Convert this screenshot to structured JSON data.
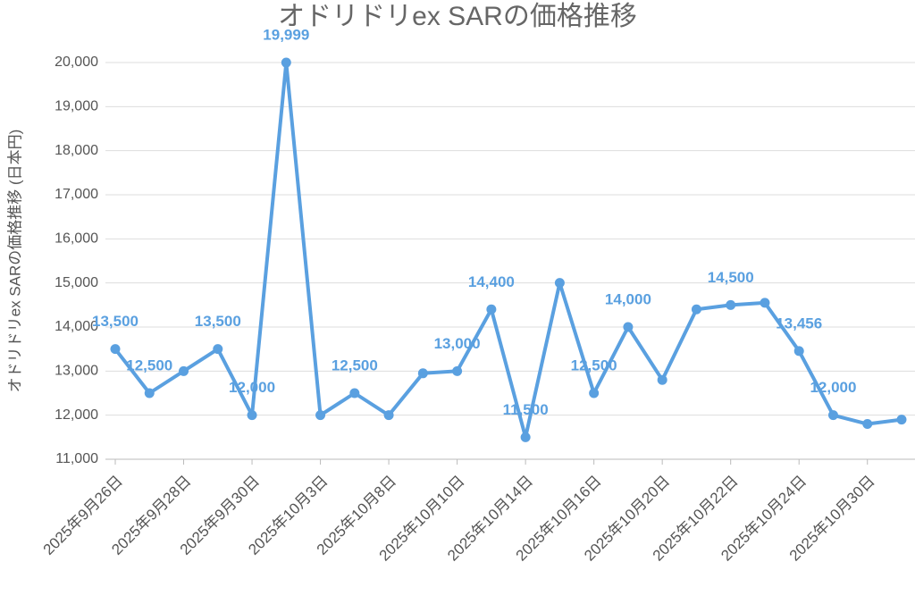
{
  "chart_data": {
    "type": "line",
    "title": "オドリドリex SARの価格推移",
    "y_label": "オドリドリex SARの価格推移 (日本円)",
    "categories": [
      "2025年9月26日",
      null,
      "2025年9月28日",
      null,
      "2025年9月30日",
      null,
      "2025年10月3日",
      null,
      "2025年10月8日",
      null,
      "2025年10月10日",
      null,
      "2025年10月14日",
      null,
      "2025年10月16日",
      null,
      "2025年10月20日",
      null,
      "2025年10月22日",
      null,
      "2025年10月24日",
      null,
      "2025年10月30日",
      null
    ],
    "series": [
      {
        "name": "価格",
        "color": "#5aa0e0",
        "values": [
          13500,
          12500,
          13000,
          13500,
          12000,
          19999,
          12000,
          12500,
          12000,
          12950,
          13000,
          14400,
          11500,
          15000,
          12500,
          14000,
          12800,
          14400,
          14500,
          14550,
          13456,
          12000,
          11800,
          11900
        ],
        "value_labels": [
          "13,500",
          "12,500",
          null,
          "13,500",
          "12,000",
          "19,999",
          null,
          "12,500",
          null,
          null,
          "13,000",
          "14,400",
          "11,500",
          null,
          "12,500",
          "14,000",
          null,
          null,
          "14,500",
          null,
          "13,456",
          "12,000",
          null,
          null
        ]
      }
    ],
    "ylim": [
      11000,
      20000
    ],
    "yticks": [
      {
        "value": 11000,
        "label": "11,000"
      },
      {
        "value": 12000,
        "label": "12,000"
      },
      {
        "value": 13000,
        "label": "13,000"
      },
      {
        "value": 14000,
        "label": "14,000"
      },
      {
        "value": 15000,
        "label": "15,000"
      },
      {
        "value": 16000,
        "label": "16,000"
      },
      {
        "value": 17000,
        "label": "17,000"
      },
      {
        "value": 18000,
        "label": "18,000"
      },
      {
        "value": 19000,
        "label": "19,000"
      },
      {
        "value": 20000,
        "label": "20,000"
      }
    ],
    "grid": true
  }
}
